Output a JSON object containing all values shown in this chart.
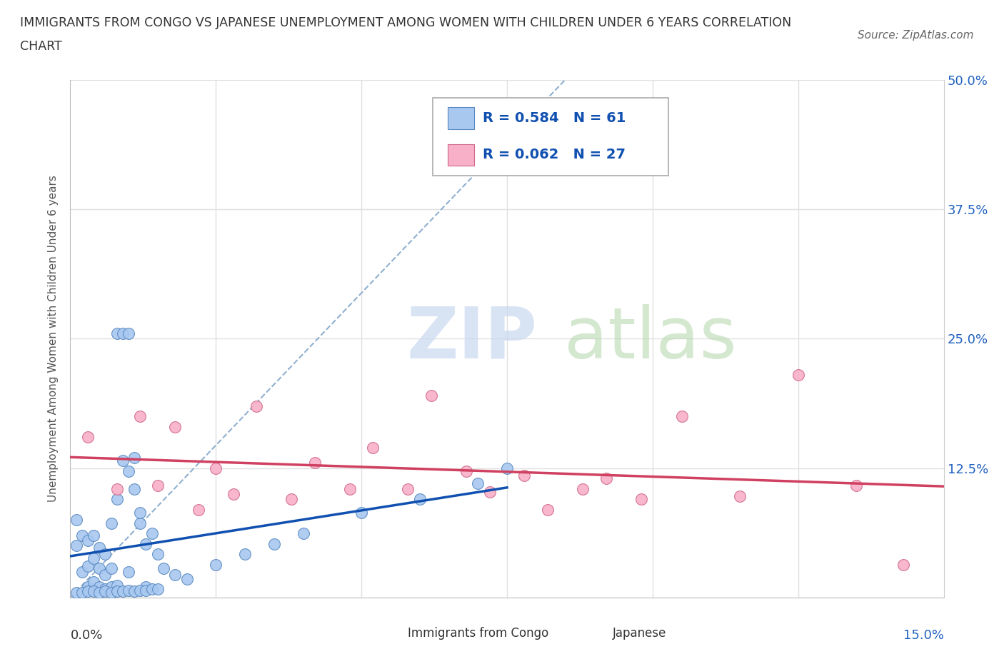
{
  "title_line1": "IMMIGRANTS FROM CONGO VS JAPANESE UNEMPLOYMENT AMONG WOMEN WITH CHILDREN UNDER 6 YEARS CORRELATION",
  "title_line2": "CHART",
  "source": "Source: ZipAtlas.com",
  "ylabel": "Unemployment Among Women with Children Under 6 years",
  "xlim": [
    0.0,
    0.15
  ],
  "ylim": [
    0.0,
    0.5
  ],
  "ytick_vals": [
    0.0,
    0.125,
    0.25,
    0.375,
    0.5
  ],
  "ytick_labels": [
    "",
    "12.5%",
    "25.0%",
    "37.5%",
    "50.0%"
  ],
  "bg_color": "#ffffff",
  "grid_color": "#e0e0e0",
  "watermark_zip_color": "#c8d8f0",
  "watermark_atlas_color": "#b8d8b0",
  "congo_fill": "#a8c8f0",
  "congo_edge": "#5888c0",
  "japanese_fill": "#f8b0c8",
  "japanese_edge": "#d06888",
  "congo_line_color": "#1050b0",
  "japanese_line_color": "#d04060",
  "dashed_color": "#90b0d0",
  "legend_text_color": "#1050b0",
  "title_color": "#333333",
  "axis_label_color": "#555555",
  "tick_color": "#2060c0",
  "bottom_label_color": "#333333",
  "n_congo": 61,
  "n_japanese": 27,
  "congo_scatter_x": [
    0.001,
    0.001,
    0.002,
    0.002,
    0.003,
    0.003,
    0.003,
    0.004,
    0.004,
    0.004,
    0.005,
    0.005,
    0.005,
    0.006,
    0.006,
    0.006,
    0.007,
    0.007,
    0.007,
    0.008,
    0.008,
    0.008,
    0.009,
    0.009,
    0.01,
    0.01,
    0.01,
    0.011,
    0.011,
    0.012,
    0.012,
    0.013,
    0.013,
    0.014,
    0.015,
    0.001,
    0.002,
    0.003,
    0.004,
    0.005,
    0.006,
    0.007,
    0.008,
    0.009,
    0.01,
    0.011,
    0.012,
    0.013,
    0.014,
    0.015,
    0.016,
    0.018,
    0.02,
    0.025,
    0.03,
    0.035,
    0.04,
    0.05,
    0.06,
    0.07,
    0.075
  ],
  "congo_scatter_y": [
    0.05,
    0.075,
    0.025,
    0.06,
    0.01,
    0.03,
    0.055,
    0.015,
    0.038,
    0.06,
    0.01,
    0.028,
    0.048,
    0.008,
    0.022,
    0.042,
    0.01,
    0.028,
    0.072,
    0.012,
    0.095,
    0.255,
    0.132,
    0.255,
    0.122,
    0.255,
    0.025,
    0.105,
    0.135,
    0.072,
    0.082,
    0.052,
    0.01,
    0.062,
    0.042,
    0.005,
    0.005,
    0.006,
    0.006,
    0.005,
    0.006,
    0.005,
    0.006,
    0.006,
    0.007,
    0.006,
    0.007,
    0.007,
    0.008,
    0.008,
    0.028,
    0.022,
    0.018,
    0.032,
    0.042,
    0.052,
    0.062,
    0.082,
    0.095,
    0.11,
    0.125
  ],
  "japanese_scatter_x": [
    0.003,
    0.008,
    0.012,
    0.015,
    0.018,
    0.022,
    0.025,
    0.028,
    0.032,
    0.038,
    0.042,
    0.048,
    0.052,
    0.058,
    0.062,
    0.068,
    0.072,
    0.078,
    0.082,
    0.088,
    0.092,
    0.098,
    0.105,
    0.115,
    0.125,
    0.135,
    0.143
  ],
  "japanese_scatter_y": [
    0.155,
    0.105,
    0.175,
    0.108,
    0.165,
    0.085,
    0.125,
    0.1,
    0.185,
    0.095,
    0.13,
    0.105,
    0.145,
    0.105,
    0.195,
    0.122,
    0.102,
    0.118,
    0.085,
    0.105,
    0.115,
    0.095,
    0.175,
    0.098,
    0.215,
    0.108,
    0.032
  ]
}
